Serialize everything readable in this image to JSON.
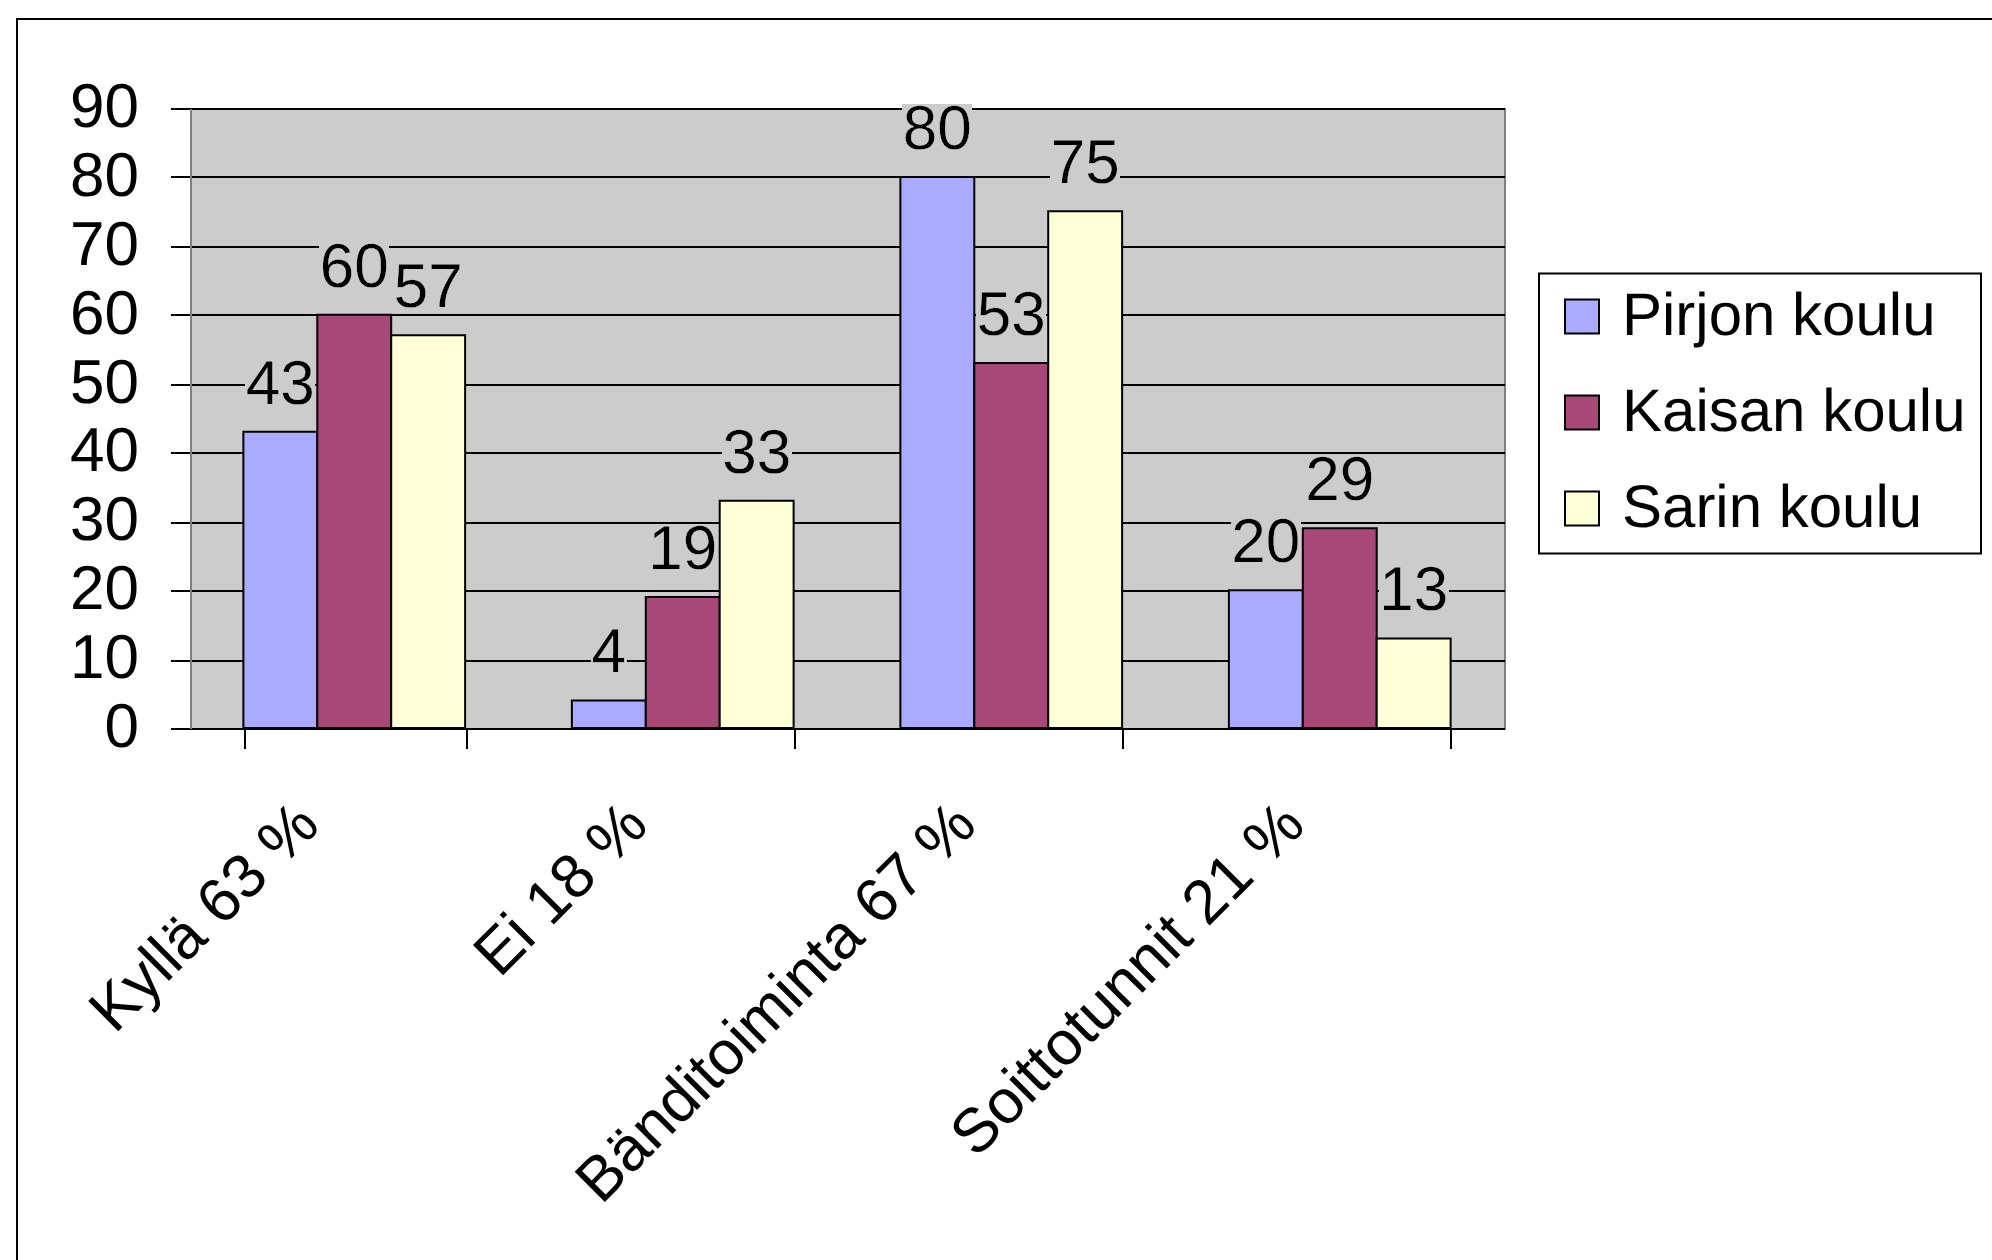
{
  "chart_data": {
    "type": "bar",
    "categories": [
      "Kyllä 63 %",
      "Ei 18 %",
      "Bänditoiminta 67 %",
      "Soittotunnit 21 %"
    ],
    "series": [
      {
        "name": "Pirjon koulu",
        "color": "#aaaaff",
        "values": [
          43,
          4,
          80,
          20
        ]
      },
      {
        "name": "Kaisan koulu",
        "color": "#a84878",
        "values": [
          60,
          19,
          53,
          29
        ]
      },
      {
        "name": "Sarin koulu",
        "color": "#ffffd8",
        "values": [
          57,
          33,
          75,
          13
        ]
      }
    ],
    "ylim": [
      0,
      90
    ],
    "yticks": [
      0,
      10,
      20,
      30,
      40,
      50,
      60,
      70,
      80,
      90
    ],
    "grid": "y",
    "legend": "right",
    "data_labels": true
  }
}
